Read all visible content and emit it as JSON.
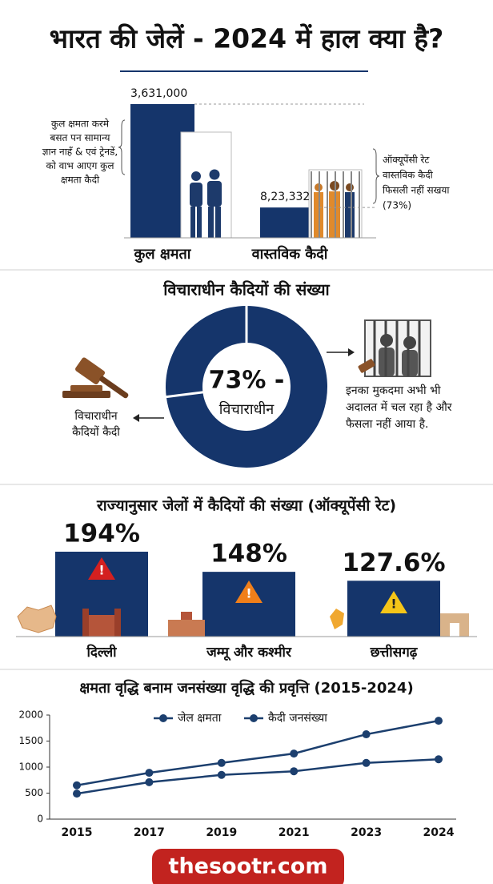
{
  "title": "भारत की जेलें - 2024 में हाल क्या है?",
  "chart_data": [
    {
      "type": "bar",
      "categories": [
        "कुल क्षमता",
        "वास्तविक कैदी"
      ],
      "values": [
        3631000,
        823332
      ],
      "value_labels": [
        "3,631,000",
        "8,23,332"
      ],
      "color": "#15356b",
      "annotations": [
        [
          "कुल क्षमता करमे",
          "बसत पन सामान्य",
          "ज्ञान नाहँ & एवं ट्रेनडें,",
          "को वाभ आएग कुल",
          "क्षमता कैदी"
        ],
        [
          "ऑक्यूपेंसी रेट",
          "वास्तविक कैदी",
          "फिसली नहीं सखया",
          "(73%)"
        ]
      ]
    },
    {
      "type": "donut",
      "title": "विचाराधीन कैदियों की संख्या",
      "values": [
        73,
        27
      ],
      "color": "#15356b",
      "center_labels": [
        "73% -",
        "विचाराधीन"
      ],
      "annotations": [
        [
          "विचाराधीन",
          "कैदियों कैदी"
        ],
        [
          "इनका मुकदमा अभी भी",
          "अदालत में चल रहा है और",
          "फैसला नहीं आया है."
        ]
      ]
    },
    {
      "type": "bar",
      "title": "राज्यानुसार जेलों में कैदियों की संख्या (ऑक्यूपेंसी रेट)",
      "categories": [
        "दिल्ली",
        "जम्मू और कश्मीर",
        "छत्तीसगढ़"
      ],
      "values": [
        194,
        148,
        127.6
      ],
      "value_labels": [
        "194%",
        "148%",
        "127.6%"
      ],
      "color": "#15356b"
    },
    {
      "type": "line",
      "title": "क्षमता वृद्धि बनाम जनसंख्या वृद्धि की प्रवृत्ति (2015-2024)",
      "categories": [
        "2015",
        "2017",
        "2019",
        "2021",
        "2023",
        "2024"
      ],
      "series": [
        {
          "name": "जेल क्षमता",
          "color": "#1c3f6e",
          "values": [
            490,
            710,
            850,
            920,
            1080,
            1150
          ]
        },
        {
          "name": "कैदी जनसंख्या",
          "color": "#1c3f6e",
          "values": [
            650,
            890,
            1080,
            1260,
            1630,
            1890
          ]
        }
      ],
      "ylim": [
        0,
        2000
      ],
      "yticks": [
        0,
        500,
        1000,
        1500,
        2000
      ]
    }
  ],
  "footer": "thesootr.com"
}
